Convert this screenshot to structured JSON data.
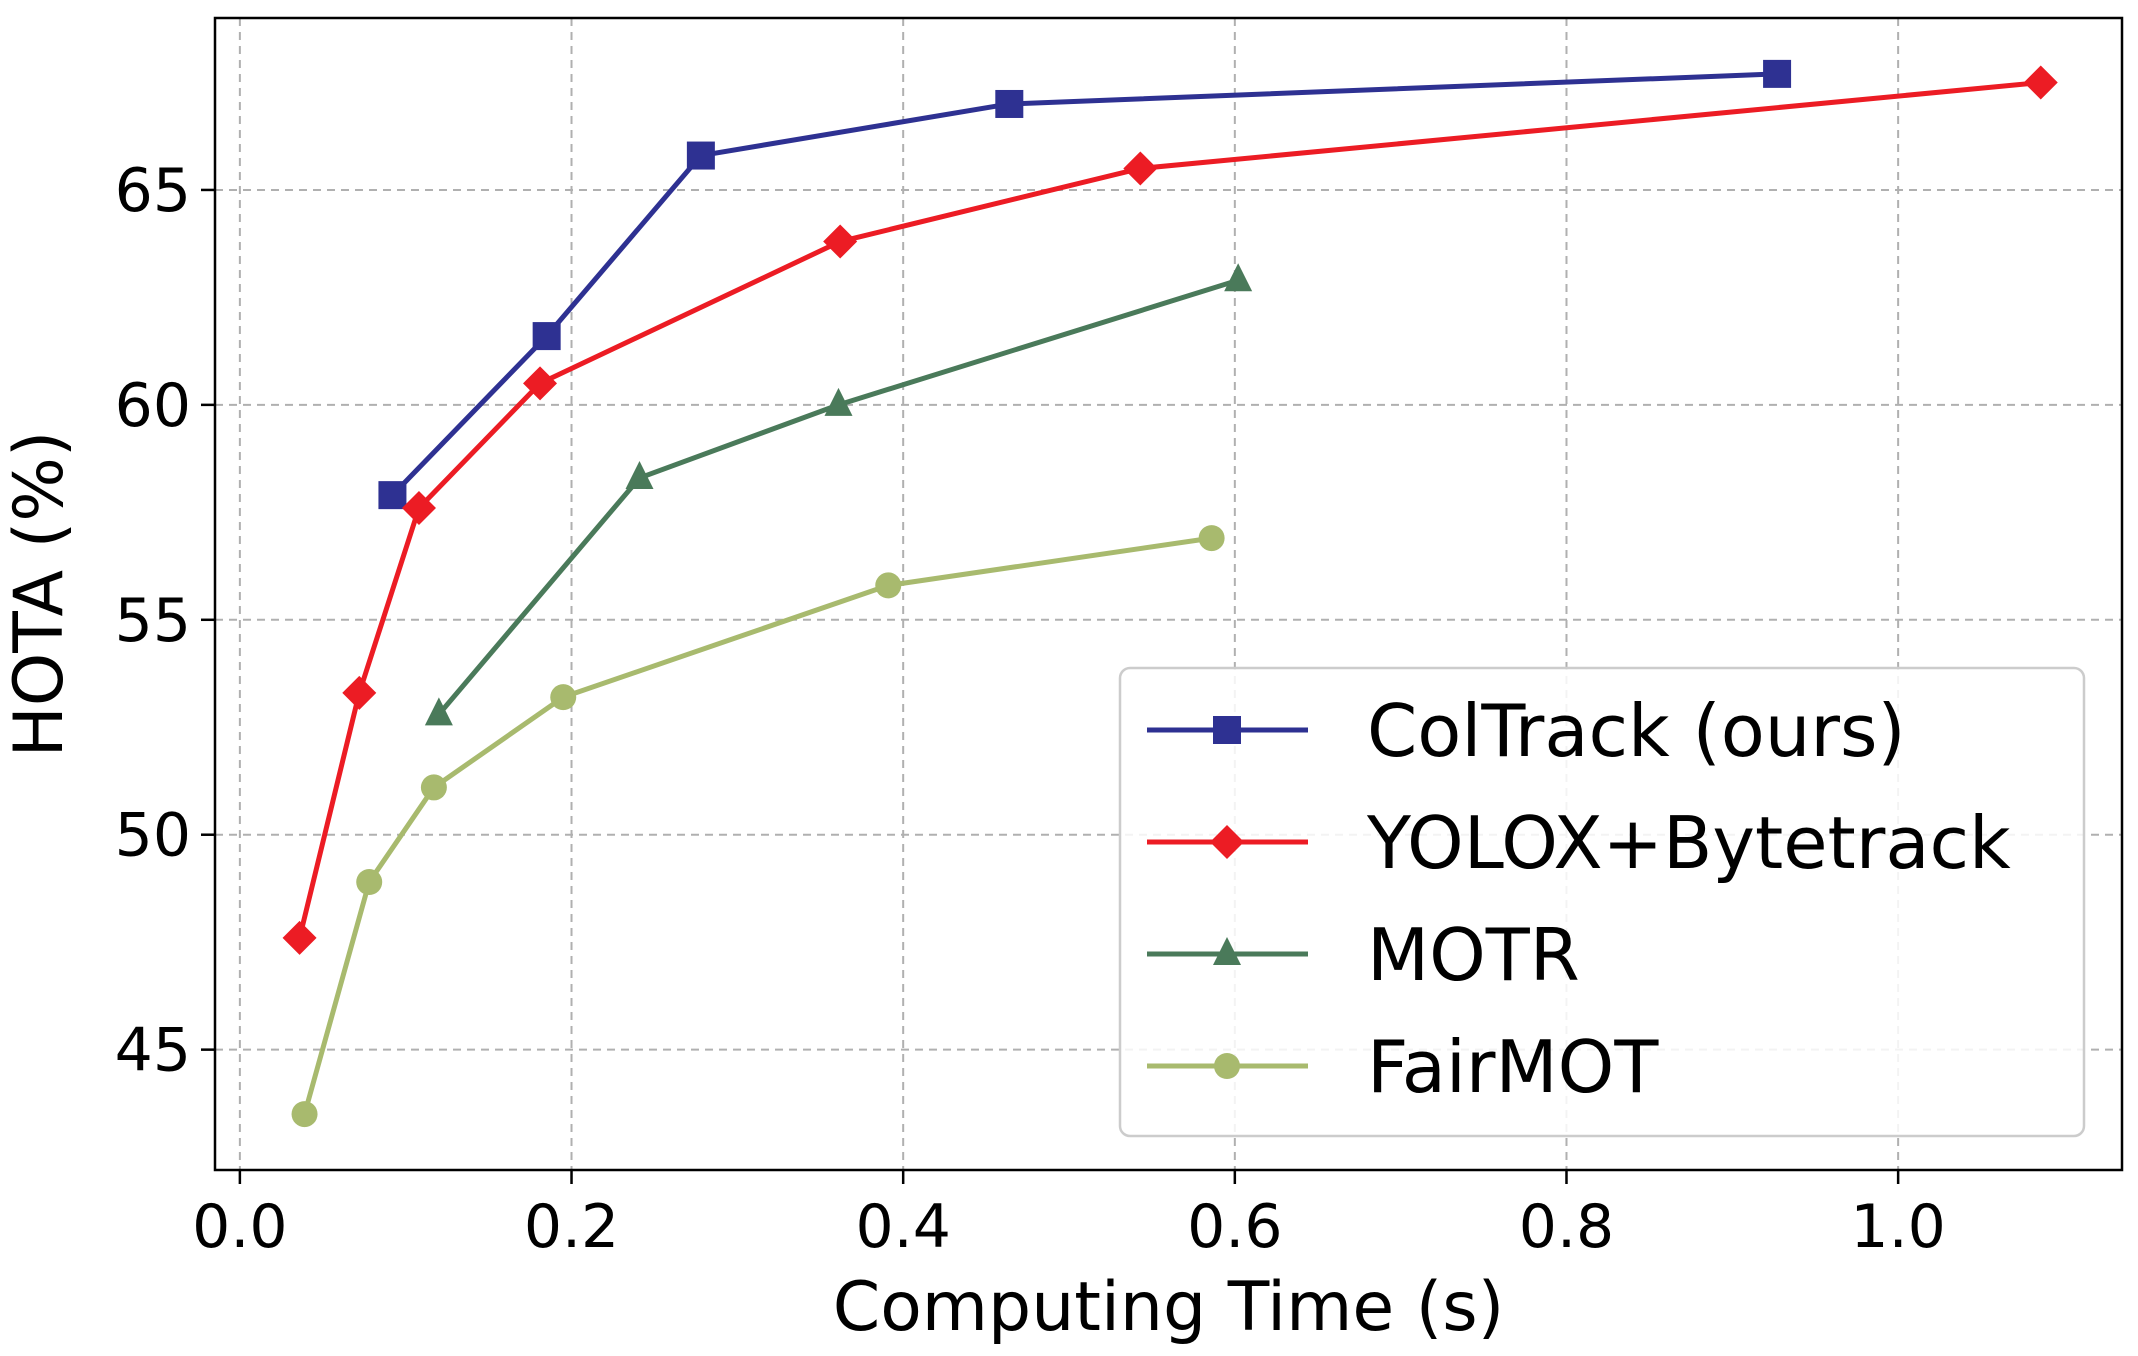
{
  "chart_data": {
    "type": "line",
    "title": "",
    "xlabel": "Computing Time (s)",
    "ylabel": "HOTA (%)",
    "xlim": [
      -0.015,
      1.135
    ],
    "ylim": [
      42.2,
      69.0
    ],
    "xticks": [
      0.0,
      0.2,
      0.4,
      0.6,
      0.8,
      1.0
    ],
    "xtick_labels": [
      "0.0",
      "0.2",
      "0.4",
      "0.6",
      "0.8",
      "1.0"
    ],
    "yticks": [
      45,
      50,
      55,
      60,
      65
    ],
    "ytick_labels": [
      "45",
      "50",
      "55",
      "60",
      "65"
    ],
    "grid": true,
    "legend_position": "lower-right",
    "series": [
      {
        "name": "ColTrack (ours)",
        "color": "#2e3192",
        "marker": "square",
        "x": [
          0.092,
          0.185,
          0.278,
          0.464,
          0.927
        ],
        "y": [
          57.9,
          61.6,
          65.8,
          67.0,
          67.7
        ]
      },
      {
        "name": "YOLOX+Bytetrack",
        "color": "#ec1c24",
        "marker": "diamond",
        "x": [
          0.036,
          0.072,
          0.108,
          0.181,
          0.362,
          0.543,
          1.086
        ],
        "y": [
          47.6,
          53.3,
          57.6,
          60.5,
          63.8,
          65.5,
          67.5
        ]
      },
      {
        "name": "MOTR",
        "color": "#4a7a5a",
        "marker": "triangle",
        "x": [
          0.12,
          0.241,
          0.361,
          0.602
        ],
        "y": [
          52.8,
          58.3,
          60.0,
          62.9
        ]
      },
      {
        "name": "FairMOT",
        "color": "#a8ba6e",
        "marker": "circle",
        "x": [
          0.039,
          0.078,
          0.117,
          0.195,
          0.391,
          0.586
        ],
        "y": [
          43.5,
          48.9,
          51.1,
          53.2,
          55.8,
          56.9
        ]
      }
    ]
  }
}
